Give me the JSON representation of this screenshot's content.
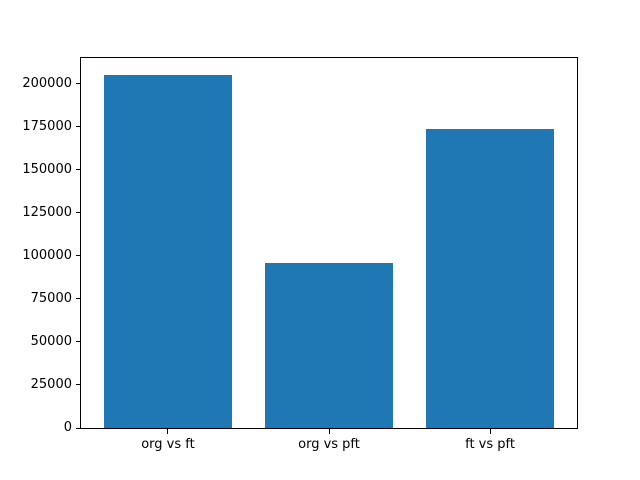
{
  "chart_data": {
    "type": "bar",
    "title": "",
    "xlabel": "",
    "ylabel": "",
    "categories": [
      "org vs ft",
      "org vs pft",
      "ft vs pft"
    ],
    "values": [
      205000,
      95800,
      173700
    ],
    "yticks": [
      0,
      25000,
      50000,
      75000,
      100000,
      125000,
      150000,
      175000,
      200000
    ],
    "ylim": [
      0,
      215000
    ],
    "xlim": [
      -0.54,
      2.54
    ],
    "bar_width": 0.8,
    "bar_color": "#1f77b4",
    "axis_color": "#000000",
    "tick_label_color": "#000000",
    "background_color": "#ffffff",
    "grid": false,
    "legend": null
  }
}
